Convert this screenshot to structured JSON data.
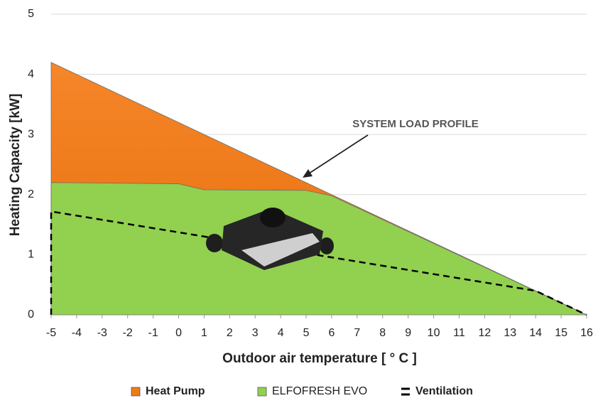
{
  "chart_data": {
    "type": "area",
    "title_annotation": "SYSTEM LOAD PROFILE",
    "x_label": "Outdoor air temperature [ ° C ]",
    "y_label": "Heating Capacity [kW]",
    "xlim": [
      -5,
      16
    ],
    "xticks": [
      -5,
      -4,
      -3,
      -2,
      -1,
      0,
      1,
      2,
      3,
      4,
      5,
      6,
      7,
      8,
      9,
      10,
      11,
      12,
      13,
      14,
      15,
      16
    ],
    "ylim": [
      0,
      5
    ],
    "yticks": [
      0,
      1,
      2,
      3,
      4,
      5
    ],
    "grid": true,
    "series": [
      {
        "name": "Heat Pump",
        "color": "#ef7b15",
        "style": "area",
        "x": [
          -5,
          6,
          16
        ],
        "values": [
          4.2,
          2.0,
          0
        ]
      },
      {
        "name": "ELFOFRESH EVO",
        "color": "#92d050",
        "style": "area",
        "x": [
          -5,
          0,
          1,
          5,
          6,
          16
        ],
        "values": [
          2.2,
          2.18,
          2.08,
          2.07,
          1.98,
          0
        ]
      },
      {
        "name": "Ventilation",
        "color": "#000000",
        "style": "dashed",
        "x": [
          -5,
          -5,
          14,
          16
        ],
        "values": [
          0,
          1.72,
          0.4,
          0
        ]
      }
    ]
  }
}
